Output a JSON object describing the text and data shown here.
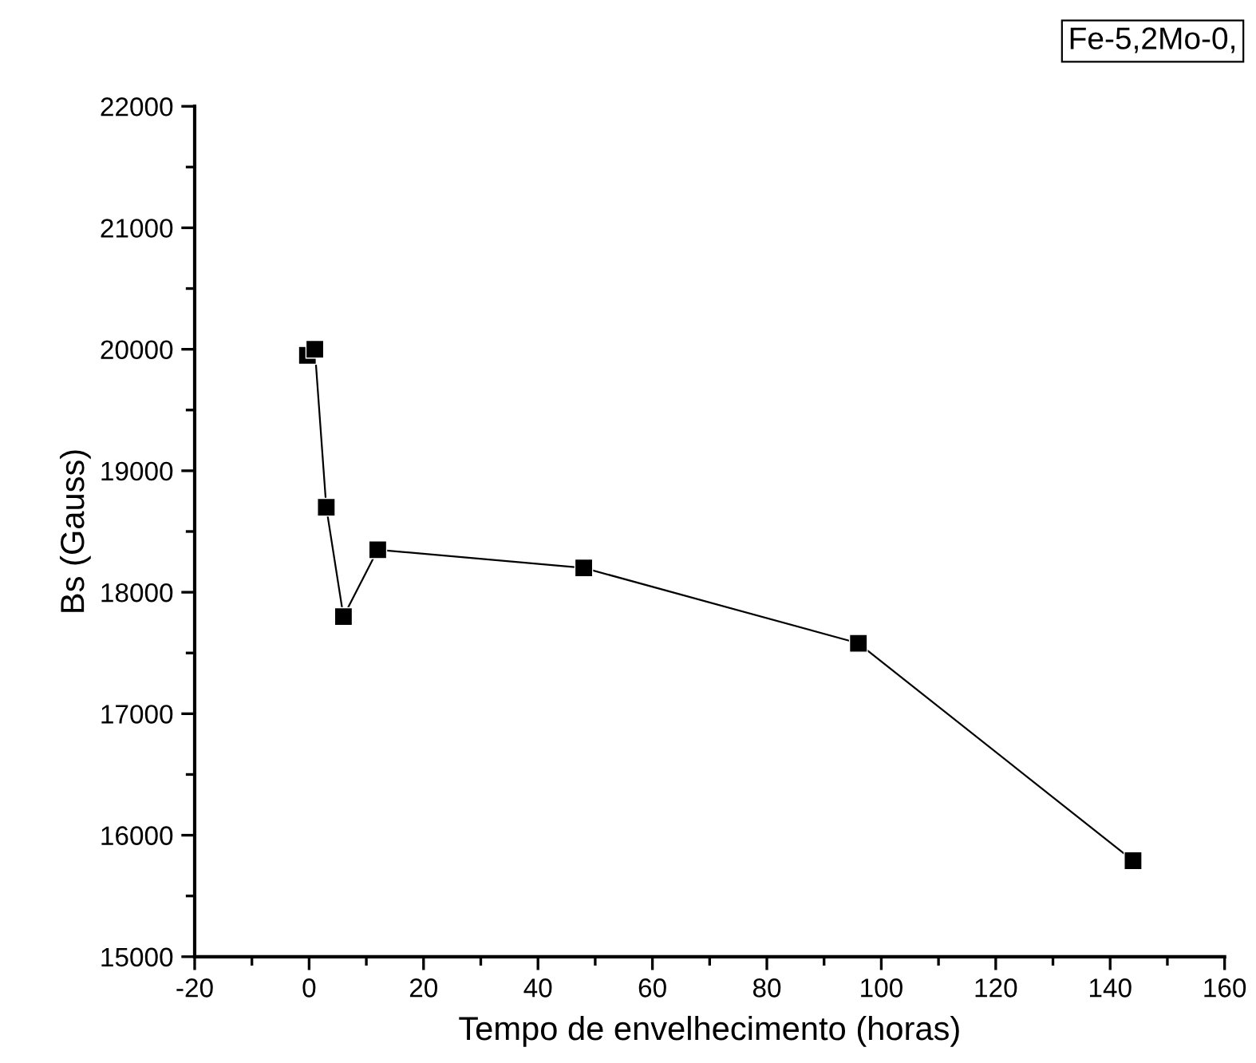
{
  "chart_data": {
    "type": "line",
    "xlabel": "Tempo de envelhecimento (horas)",
    "ylabel": "Bs (Gauss)",
    "x": [
      -0.3,
      1,
      3,
      6,
      12,
      48,
      96,
      144
    ],
    "series": [
      {
        "color": "#000000",
        "values": [
          19950,
          20000,
          18700,
          17800,
          18350,
          18200,
          17580,
          15790
        ]
      }
    ],
    "xlim": [
      -20,
      160
    ],
    "xticks": [
      -20,
      0,
      20,
      40,
      60,
      80,
      100,
      120,
      140,
      160
    ],
    "ylim": [
      15000,
      22000
    ],
    "yticks": [
      15000,
      16000,
      17000,
      18000,
      19000,
      20000,
      21000,
      22000
    ],
    "marker": "square",
    "line_style": "solid",
    "grid": false,
    "legend": false,
    "annotations": [
      "Fe-5,2Mo-0,"
    ]
  }
}
